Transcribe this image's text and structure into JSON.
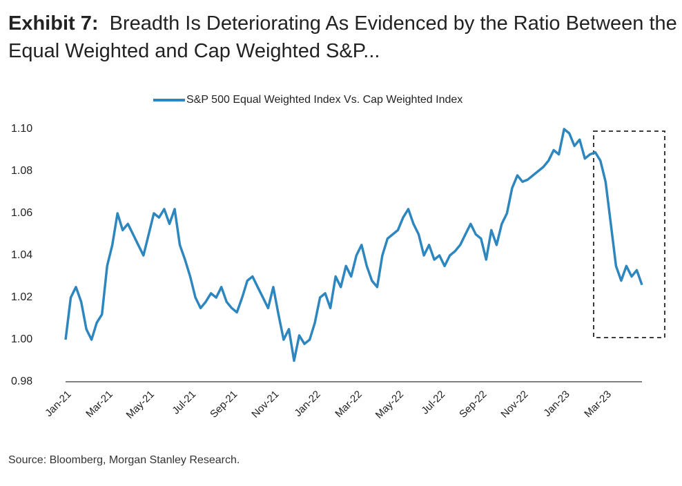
{
  "chart_data": {
    "type": "line",
    "title_label": "Exhibit 7:",
    "title": "Breadth Is Deteriorating As Evidenced by the Ratio Between the Equal Weighted and Cap Weighted S&P...",
    "source": "Source: Bloomberg, Morgan Stanley Research.",
    "categories": [
      "Jan-21",
      null,
      null,
      null,
      null,
      null,
      null,
      null,
      "Mar-21",
      null,
      null,
      null,
      null,
      null,
      null,
      null,
      "May-21",
      null,
      null,
      null,
      null,
      null,
      null,
      null,
      "Jul-21",
      null,
      null,
      null,
      null,
      null,
      null,
      null,
      "Sep-21",
      null,
      null,
      null,
      null,
      null,
      null,
      null,
      "Nov-21",
      null,
      null,
      null,
      null,
      null,
      null,
      null,
      "Jan-22",
      null,
      null,
      null,
      null,
      null,
      null,
      null,
      "Mar-22",
      null,
      null,
      null,
      null,
      null,
      null,
      null,
      "May-22",
      null,
      null,
      null,
      null,
      null,
      null,
      null,
      "Jul-22",
      null,
      null,
      null,
      null,
      null,
      null,
      null,
      "Sep-22",
      null,
      null,
      null,
      null,
      null,
      null,
      null,
      "Nov-22",
      null,
      null,
      null,
      null,
      null,
      null,
      null,
      "Jan-23",
      null,
      null,
      null,
      null,
      null,
      null,
      null,
      "Mar-23",
      null,
      null,
      null,
      null,
      null,
      null,
      null
    ],
    "series": [
      {
        "name": "S&P 500 Equal Weighted Index Vs. Cap Weighted Index",
        "color": "#2e86bf",
        "values": [
          1.0,
          1.02,
          1.025,
          1.018,
          1.005,
          1.0,
          1.008,
          1.012,
          1.035,
          1.045,
          1.06,
          1.052,
          1.055,
          1.05,
          1.045,
          1.04,
          1.05,
          1.06,
          1.058,
          1.062,
          1.055,
          1.062,
          1.045,
          1.038,
          1.03,
          1.02,
          1.015,
          1.018,
          1.022,
          1.02,
          1.025,
          1.018,
          1.015,
          1.013,
          1.02,
          1.028,
          1.03,
          1.025,
          1.02,
          1.015,
          1.025,
          1.012,
          1.0,
          1.005,
          0.99,
          1.002,
          0.998,
          1.0,
          1.008,
          1.02,
          1.022,
          1.015,
          1.03,
          1.025,
          1.035,
          1.03,
          1.04,
          1.045,
          1.035,
          1.028,
          1.025,
          1.04,
          1.048,
          1.05,
          1.052,
          1.058,
          1.062,
          1.055,
          1.05,
          1.04,
          1.045,
          1.038,
          1.04,
          1.035,
          1.04,
          1.042,
          1.045,
          1.05,
          1.055,
          1.05,
          1.048,
          1.038,
          1.052,
          1.045,
          1.055,
          1.06,
          1.072,
          1.078,
          1.075,
          1.076,
          1.078,
          1.08,
          1.082,
          1.085,
          1.09,
          1.088,
          1.1,
          1.098,
          1.092,
          1.095,
          1.086,
          1.088,
          1.089,
          1.085,
          1.075,
          1.055,
          1.035,
          1.028,
          1.035,
          1.03,
          1.033,
          1.026
        ]
      }
    ],
    "ylim": [
      0.98,
      1.1
    ],
    "yticks": [
      0.98,
      {
        "value": 1.0,
        "label": "1.00"
      },
      1.02,
      1.04,
      1.06,
      1.08,
      {
        "value": 1.1,
        "label": "1.10"
      }
    ],
    "grid": false,
    "legend": "top"
  }
}
